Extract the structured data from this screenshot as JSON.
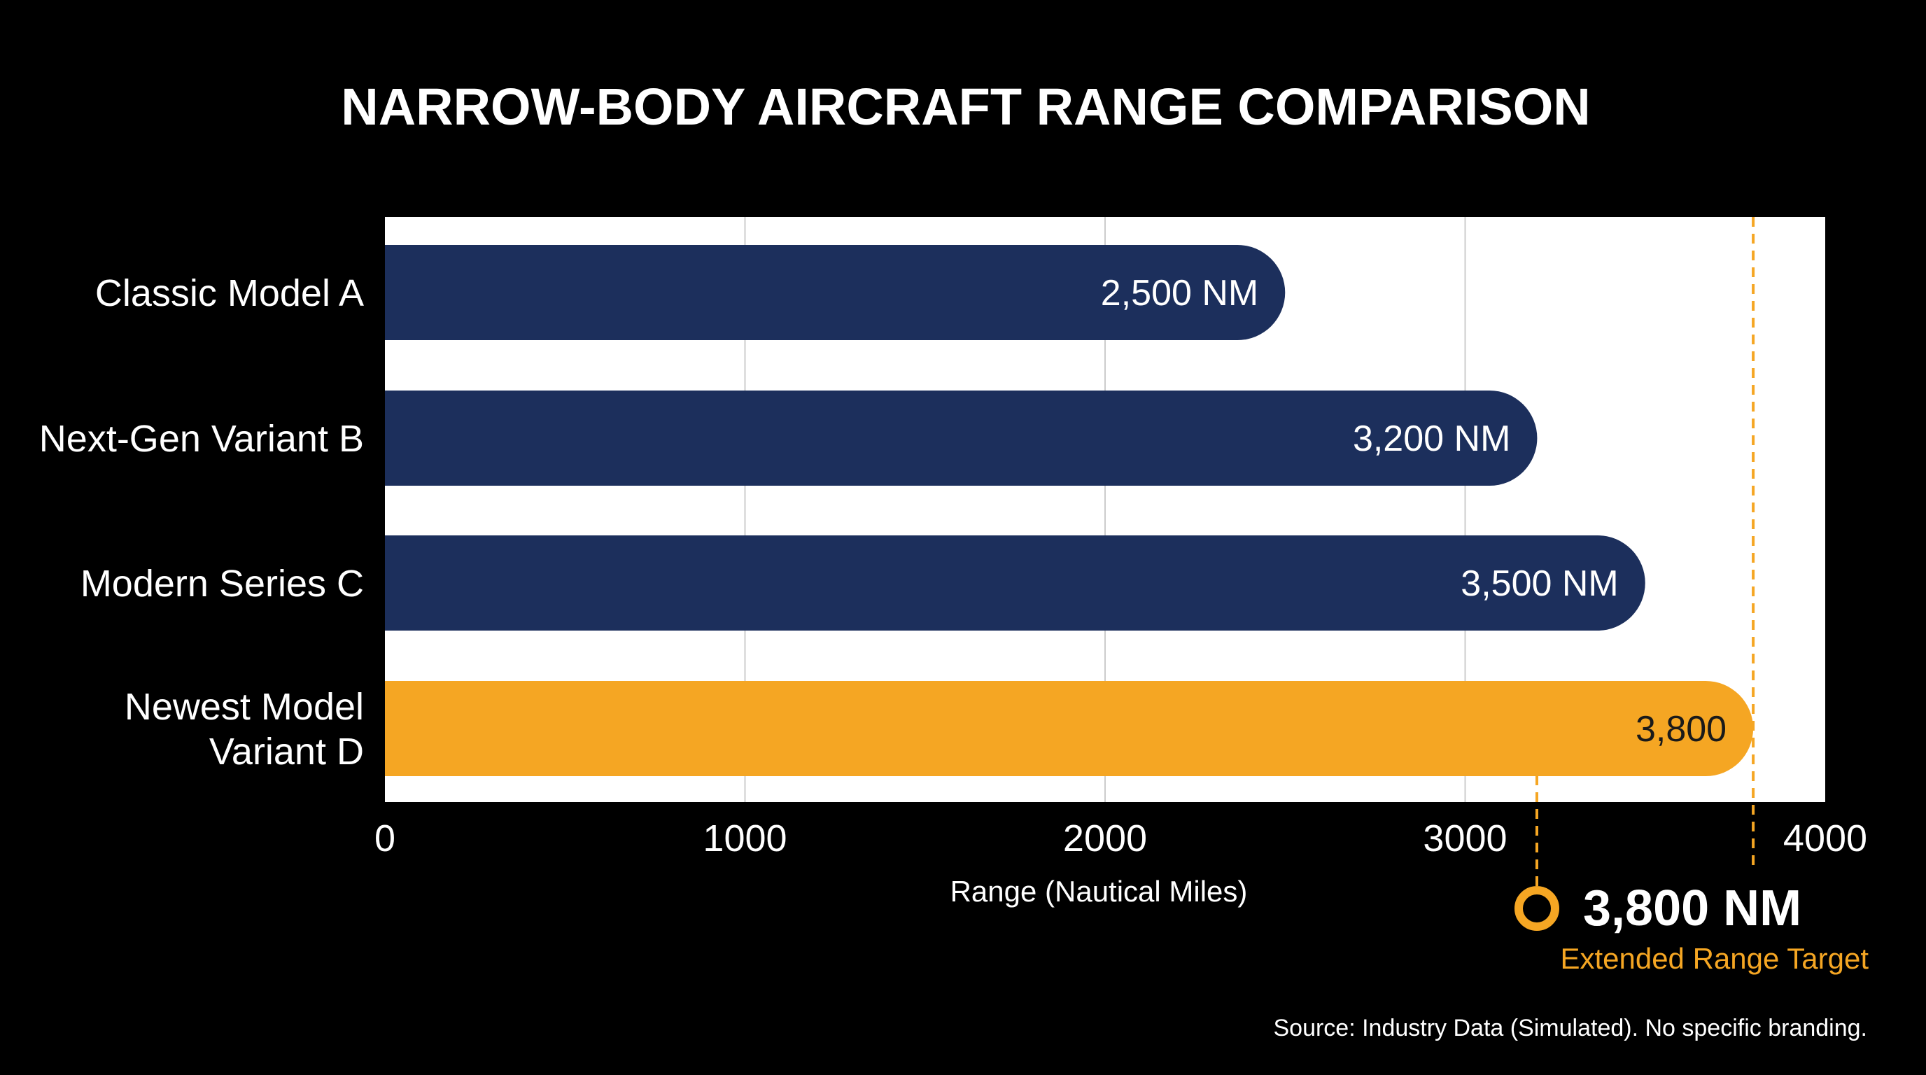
{
  "chart_data": {
    "type": "bar",
    "orientation": "horizontal",
    "title": "NARROW-BODY AIRCRAFT RANGE COMPARISON",
    "categories": [
      [
        "Classic Model A"
      ],
      [
        "Next-Gen Variant B"
      ],
      [
        "Modern Series C"
      ],
      [
        "Newest Model",
        "Variant D"
      ]
    ],
    "values": [
      2500,
      3200,
      3500,
      3800
    ],
    "data_labels": [
      "2,500 NM",
      "3,200 NM",
      "3,500 NM",
      "3,800"
    ],
    "highlight_index": 3,
    "xlabel": "Range (Nautical Miles)",
    "ylabel": "",
    "xlim": [
      0,
      4000
    ],
    "xticks": [
      0,
      1000,
      2000,
      3000,
      4000
    ],
    "grid": true,
    "reference_line": {
      "value": 3800,
      "value_text": "3,800 NM",
      "label": "Extended Range Target"
    },
    "source": "Source: Industry Data (Simulated). No specific branding."
  },
  "colors": {
    "background": "#000000",
    "plot_background": "#ffffff",
    "bar": "#1c2f5c",
    "highlight_bar": "#f5a623",
    "accent": "#f5a623",
    "gridline": "#cccccc",
    "text": "#ffffff",
    "highlight_text": "#1a1a1a"
  }
}
